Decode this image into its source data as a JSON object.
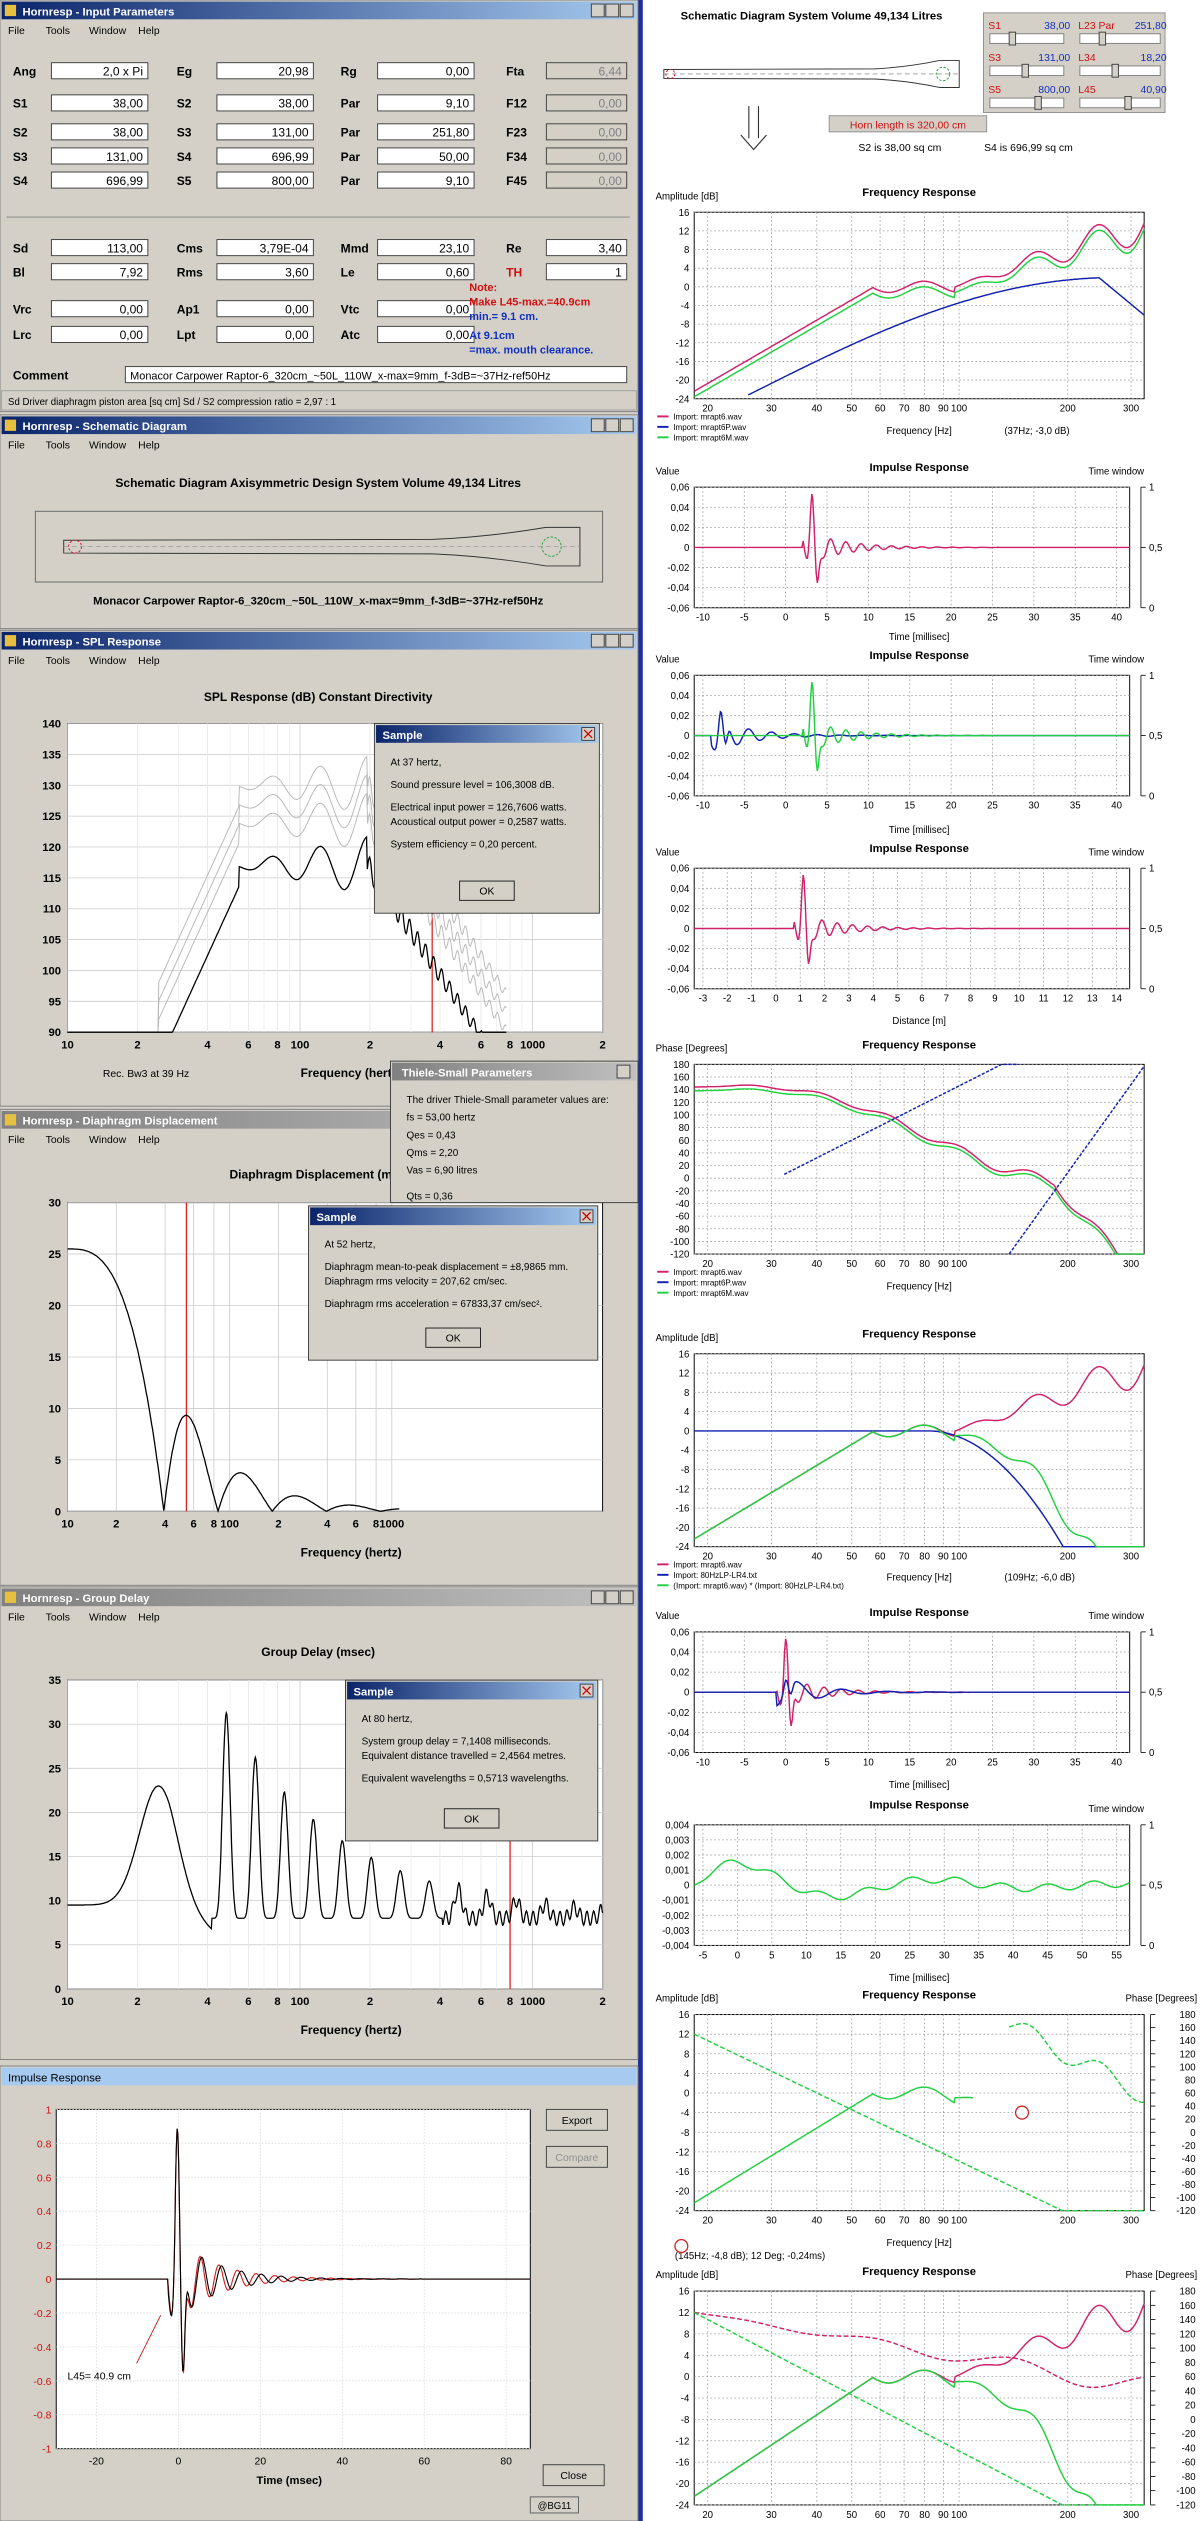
{
  "input": {
    "title": "Hornresp - Input Parameters",
    "menu": [
      "File",
      "Tools",
      "Window",
      "Help"
    ],
    "rows": [
      [
        [
          "Ang",
          "2,0 x Pi"
        ],
        [
          "Eg",
          "20,98"
        ],
        [
          "Rg",
          "0,00"
        ],
        [
          "Fta",
          "6,44"
        ]
      ],
      [
        [
          "S1",
          "38,00"
        ],
        [
          "S2",
          "38,00"
        ],
        [
          "Par",
          "9,10"
        ],
        [
          "F12",
          "0,00"
        ]
      ],
      [
        [
          "S2",
          "38,00"
        ],
        [
          "S3",
          "131,00"
        ],
        [
          "Par",
          "251,80"
        ],
        [
          "F23",
          "0,00"
        ]
      ],
      [
        [
          "S3",
          "131,00"
        ],
        [
          "S4",
          "696,99"
        ],
        [
          "Par",
          "50,00"
        ],
        [
          "F34",
          "0,00"
        ]
      ],
      [
        [
          "S4",
          "696,99"
        ],
        [
          "S5",
          "800,00"
        ],
        [
          "Par",
          "9,10"
        ],
        [
          "F45",
          "0,00"
        ]
      ],
      [
        [
          "Sd",
          "113,00"
        ],
        [
          "Cms",
          "3,79E-04"
        ],
        [
          "Mmd",
          "23,10"
        ],
        [
          "Re",
          "3,40"
        ]
      ],
      [
        [
          "Bl",
          "7,92"
        ],
        [
          "Rms",
          "3,60"
        ],
        [
          "Le",
          "0,60"
        ],
        [
          "TH",
          "1"
        ]
      ],
      [
        [
          "Vrc",
          "0,00"
        ],
        [
          "Ap1",
          "0,00"
        ],
        [
          "Vtc",
          "0,00"
        ]
      ],
      [
        [
          "Lrc",
          "0,00"
        ],
        [
          "Lpt",
          "0,00"
        ],
        [
          "Atc",
          "0,00"
        ]
      ]
    ],
    "note": [
      "Note:",
      "Make L45-max.=40.9cm",
      "min.= 9.1 cm.",
      "At 9.1cm",
      "=max. mouth clearance."
    ],
    "comment_label": "Comment",
    "comment": "Monacor Carpower Raptor-6_320cm_~50L_110W_x-max=9mm_f-3dB=~37Hz-ref50Hz",
    "status": "Sd    Driver diaphragm piston area  [sq cm]    Sd / S2 compression ratio = 2,97 : 1"
  },
  "schematic": {
    "title": "Hornresp - Schematic Diagram",
    "menu": [
      "File",
      "Tools",
      "Window",
      "Help"
    ],
    "heading": "Schematic Diagram   Axisymmetric Design   System Volume 49,134 Litres",
    "caption": "Monacor Carpower Raptor-6_320cm_~50L_110W_x-max=9mm_f-3dB=~37Hz-ref50Hz"
  },
  "spl": {
    "title": "Hornresp - SPL Response",
    "menu": [
      "File",
      "Tools",
      "Window",
      "Help"
    ],
    "heading": "SPL Response (dB)    Constant Directivity",
    "yticks": [
      "140",
      "135",
      "130",
      "125",
      "120",
      "115",
      "110",
      "105",
      "100",
      "95",
      "90"
    ],
    "xticks": [
      "10",
      "2",
      "4",
      "6",
      "8",
      "100",
      "2",
      "4",
      "6",
      "8",
      "1000",
      "2"
    ],
    "xlabel": "Frequency (hertz)",
    "note": "Rec. Bw3 at 39 Hz",
    "dialog": {
      "title": "Sample",
      "lines": [
        "At 37 hertz,",
        "Sound pressure level = 106,3008 dB.",
        "Electrical input power = 126,7606 watts.",
        "Acoustical output power = 0,2587 watts.",
        "System efficiency = 0,20 percent."
      ],
      "button": "OK"
    }
  },
  "thiele_small": {
    "title": "Thiele-Small Parameters",
    "lines": [
      "The driver Thiele-Small parameter values are:",
      "fs = 53,00 hertz",
      "Qes = 0,43",
      "Qms = 2,20",
      "Vas = 6,90 litres",
      "Qts = 0,36"
    ]
  },
  "diaphragm": {
    "title": "Hornresp - Diaphragm Displacement",
    "menu": [
      "File",
      "Tools",
      "Window",
      "Help"
    ],
    "heading": "Diaphragm Displacement (mm)",
    "yticks": [
      "30",
      "25",
      "20",
      "15",
      "10",
      "5",
      "0"
    ],
    "xticks": [
      "10",
      "2",
      "4",
      "6",
      "8",
      "100",
      "2",
      "4",
      "6",
      "8",
      "1000"
    ],
    "xlabel": "Frequency (hertz)",
    "dialog": {
      "title": "Sample",
      "lines": [
        "At 52 hertz,",
        "Diaphragm mean-to-peak displacement = ±8,9865 mm.",
        "Diaphragm rms velocity = 207,62 cm/sec.",
        "Diaphragm rms acceleration = 67833,37 cm/sec²."
      ],
      "button": "OK"
    }
  },
  "group_delay": {
    "title": "Hornresp - Group Delay",
    "menu": [
      "File",
      "Tools",
      "Window",
      "Help"
    ],
    "heading": "Group Delay (msec)",
    "yticks": [
      "35",
      "30",
      "25",
      "20",
      "15",
      "10",
      "5",
      "0"
    ],
    "xticks": [
      "10",
      "2",
      "4",
      "6",
      "8",
      "100",
      "2",
      "4",
      "6",
      "8",
      "1000",
      "2"
    ],
    "xlabel": "Frequency (hertz)",
    "dialog": {
      "title": "Sample",
      "lines": [
        "At 80 hertz,",
        "System group delay = 7,1408 milliseconds.",
        "Equivalent distance travelled = 2,4564 metres.",
        "Equivalent wavelengths = 0,5713 wavelengths."
      ],
      "button": "OK"
    }
  },
  "impulse": {
    "title": "Impulse Response",
    "yticks": [
      "1",
      "0.8",
      "0.6",
      "0.4",
      "0.2",
      "0",
      "-0.2",
      "-0.4",
      "-0.6",
      "-0.8",
      "-1"
    ],
    "xticks": [
      "-20",
      "0",
      "20",
      "40",
      "60",
      "80"
    ],
    "xlabel": "Time (msec)",
    "buttons": [
      "Export",
      "Compare",
      "Close"
    ],
    "annotation": "L45= 40.9 cm",
    "credit": "@BG11"
  },
  "right_schematic": {
    "heading": "Schematic Diagram   System Volume 49,134 Litres",
    "sliders": [
      [
        "S1",
        "38,00"
      ],
      [
        "S3",
        "131,00"
      ],
      [
        "S5",
        "800,00"
      ],
      [
        "L23 Par",
        "251,80"
      ],
      [
        "L34",
        "18,20"
      ],
      [
        "L45",
        "40,90"
      ]
    ],
    "info": [
      "Horn length is 320,00 cm",
      "S2 is 38,00 sq cm",
      "S4 is 696,99 sq cm"
    ]
  },
  "panels": [
    {
      "ylabel": "Amplitude [dB]",
      "title": "Frequency Response",
      "yticks": [
        "16",
        "12",
        "8",
        "4",
        "0",
        "-4",
        "-8",
        "-12",
        "-16",
        "-20",
        "-24"
      ],
      "xticks": [
        "20",
        "30",
        "40",
        "50",
        "60",
        "70",
        "80",
        "90",
        "100",
        "200",
        "300"
      ],
      "xlabel": "Frequency [Hz]",
      "note": "(37Hz; -3,0 dB)",
      "legend": [
        "Import: mrapt6.wav",
        "Import: mrapt6P.wav",
        "Import: mrapt6M.wav"
      ]
    },
    {
      "ylabel": "Value",
      "title": "Impulse Response",
      "y2label": "Time window",
      "yticks": [
        "0,06",
        "0,04",
        "0,02",
        "0",
        "-0,02",
        "-0,04",
        "-0,06"
      ],
      "y2ticks": [
        "1",
        "0,5",
        "0"
      ],
      "xticks": [
        "-10",
        "-5",
        "0",
        "5",
        "10",
        "15",
        "20",
        "25",
        "30",
        "35",
        "40"
      ],
      "xlabel": "Time [millisec]"
    },
    {
      "ylabel": "Value",
      "title": "Impulse Response",
      "y2label": "Time window",
      "yticks": [
        "0,06",
        "0,04",
        "0,02",
        "0",
        "-0,02",
        "-0,04",
        "-0,06"
      ],
      "y2ticks": [
        "1",
        "0,5",
        "0"
      ],
      "xticks": [
        "-10",
        "-5",
        "0",
        "5",
        "10",
        "15",
        "20",
        "25",
        "30",
        "35",
        "40"
      ],
      "xlabel": "Time [millisec]"
    },
    {
      "ylabel": "Value",
      "title": "Impulse Response",
      "y2label": "Time window",
      "yticks": [
        "0,06",
        "0,04",
        "0,02",
        "0",
        "-0,02",
        "-0,04",
        "-0,06"
      ],
      "y2ticks": [
        "1",
        "0,5",
        "0"
      ],
      "xticks": [
        "-3",
        "-2",
        "-1",
        "0",
        "1",
        "2",
        "3",
        "4",
        "5",
        "6",
        "7",
        "8",
        "9",
        "10",
        "11",
        "12",
        "13",
        "14"
      ],
      "xlabel": "Distance [m]"
    },
    {
      "ylabel": "Phase [Degrees]",
      "title": "Frequency Response",
      "yticks": [
        "180",
        "160",
        "140",
        "120",
        "100",
        "80",
        "60",
        "40",
        "20",
        "0",
        "-20",
        "-40",
        "-60",
        "-80",
        "-100",
        "-120"
      ],
      "xticks": [
        "20",
        "30",
        "40",
        "50",
        "60",
        "70",
        "80",
        "90",
        "100",
        "200",
        "300"
      ],
      "xlabel": "Frequency [Hz]",
      "legend": [
        "Import: mrapt6.wav",
        "Import: mrapt6P.wav",
        "Import: mrapt6M.wav"
      ]
    },
    {
      "ylabel": "Amplitude [dB]",
      "title": "Frequency Response",
      "yticks": [
        "16",
        "12",
        "8",
        "4",
        "0",
        "-4",
        "-8",
        "-12",
        "-16",
        "-20",
        "-24"
      ],
      "xticks": [
        "20",
        "30",
        "40",
        "50",
        "60",
        "70",
        "80",
        "90",
        "100",
        "200",
        "300"
      ],
      "xlabel": "Frequency [Hz]",
      "note": "(109Hz; -6,0 dB)",
      "legend": [
        "Import: mrapt6.wav",
        "Import: 80HzLP-LR4.txt",
        "(Import: mrapt6.wav) * (Import: 80HzLP-LR4.txt)"
      ]
    },
    {
      "ylabel": "Value",
      "title": "Impulse Response",
      "y2label": "Time window",
      "yticks": [
        "0,06",
        "0,04",
        "0,02",
        "0",
        "-0,02",
        "-0,04",
        "-0,06"
      ],
      "y2ticks": [
        "1",
        "0,5",
        "0"
      ],
      "xticks": [
        "-10",
        "-5",
        "0",
        "5",
        "10",
        "15",
        "20",
        "25",
        "30",
        "35",
        "40"
      ],
      "xlabel": "Time [millisec]"
    },
    {
      "title": "Impulse Response",
      "y2label": "Time window",
      "yticks": [
        "0,004",
        "0,003",
        "0,002",
        "0,001",
        "0",
        "-0,001",
        "-0,002",
        "-0,003",
        "-0,004"
      ],
      "y2ticks": [
        "1",
        "0,5",
        "0"
      ],
      "xticks": [
        "-5",
        "0",
        "5",
        "10",
        "15",
        "20",
        "25",
        "30",
        "35",
        "40",
        "45",
        "50",
        "55"
      ],
      "xlabel": "Time [millisec]"
    },
    {
      "ylabel": "Amplitude [dB]",
      "title": "Frequency Response",
      "y2label": "Phase [Degrees]",
      "yticks": [
        "16",
        "12",
        "8",
        "4",
        "0",
        "-4",
        "-8",
        "-12",
        "-16",
        "-20",
        "-24"
      ],
      "y2ticks": [
        "180",
        "160",
        "140",
        "120",
        "100",
        "80",
        "60",
        "40",
        "20",
        "0",
        "-20",
        "-40",
        "-60",
        "-80",
        "-100",
        "-120"
      ],
      "xticks": [
        "20",
        "30",
        "40",
        "50",
        "60",
        "70",
        "80",
        "90",
        "100",
        "200",
        "300"
      ],
      "xlabel": "Frequency [Hz]",
      "note": "(145Hz; -4,8 dB); 12 Deg; -0,24ms)"
    },
    {
      "ylabel": "Amplitude [dB]",
      "title": "Frequency Response",
      "y2label": "Phase [Degrees]",
      "yticks": [
        "16",
        "12",
        "8",
        "4",
        "0",
        "-4",
        "-8",
        "-12",
        "-16",
        "-20",
        "-24"
      ],
      "y2ticks": [
        "180",
        "160",
        "140",
        "120",
        "100",
        "80",
        "60",
        "40",
        "20",
        "0",
        "-20",
        "-40",
        "-60",
        "-80",
        "-100",
        "-120"
      ],
      "xticks": [
        "20",
        "30",
        "40",
        "50",
        "60",
        "70",
        "80",
        "90",
        "100",
        "200",
        "300"
      ]
    }
  ]
}
